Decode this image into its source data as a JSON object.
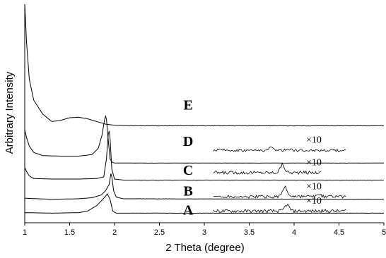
{
  "chart_data": {
    "type": "line",
    "xlabel": "2 Theta (degree)",
    "ylabel": "Arbitrary Intensity",
    "xlim": [
      1,
      5
    ],
    "x_ticks": [
      "1",
      "1.5",
      "2",
      "2.5",
      "3",
      "3.5",
      "4",
      "4.5",
      "5"
    ],
    "grid": false,
    "legend": "none",
    "series_labels": [
      "E",
      "D",
      "C",
      "B",
      "A"
    ],
    "magnification_label": "×10",
    "series": [
      {
        "label": "E",
        "baseline": 0.91,
        "points": [
          [
            1.0,
            2.05
          ],
          [
            1.02,
            1.7
          ],
          [
            1.05,
            1.35
          ],
          [
            1.1,
            1.15
          ],
          [
            1.2,
            1.02
          ],
          [
            1.3,
            0.95
          ],
          [
            1.4,
            0.96
          ],
          [
            1.5,
            0.985
          ],
          [
            1.6,
            0.99
          ],
          [
            1.7,
            0.975
          ],
          [
            1.8,
            0.95
          ],
          [
            1.9,
            0.925
          ],
          [
            2.0,
            0.915
          ],
          [
            2.2,
            0.91
          ],
          [
            5.0,
            0.91
          ]
        ]
      },
      {
        "label": "D",
        "baseline": 0.56,
        "points": [
          [
            1.0,
            0.87
          ],
          [
            1.02,
            0.8
          ],
          [
            1.05,
            0.72
          ],
          [
            1.1,
            0.66
          ],
          [
            1.2,
            0.63
          ],
          [
            1.4,
            0.625
          ],
          [
            1.6,
            0.625
          ],
          [
            1.75,
            0.64
          ],
          [
            1.82,
            0.7
          ],
          [
            1.86,
            0.82
          ],
          [
            1.89,
            0.97
          ],
          [
            1.9,
            1.0
          ],
          [
            1.91,
            0.97
          ],
          [
            1.93,
            0.78
          ],
          [
            1.95,
            0.6
          ],
          [
            1.97,
            0.57
          ],
          [
            2.0,
            0.56
          ],
          [
            5.0,
            0.56
          ]
        ]
      },
      {
        "label": "C",
        "baseline": 0.4,
        "points": [
          [
            1.0,
            0.52
          ],
          [
            1.02,
            0.48
          ],
          [
            1.05,
            0.44
          ],
          [
            1.1,
            0.415
          ],
          [
            1.3,
            0.41
          ],
          [
            1.6,
            0.41
          ],
          [
            1.8,
            0.415
          ],
          [
            1.88,
            0.43
          ],
          [
            1.91,
            0.6
          ],
          [
            1.93,
            0.83
          ],
          [
            1.94,
            0.86
          ],
          [
            1.95,
            0.8
          ],
          [
            1.97,
            0.5
          ],
          [
            2.0,
            0.41
          ],
          [
            2.1,
            0.4
          ],
          [
            5.0,
            0.4
          ]
        ]
      },
      {
        "label": "B",
        "baseline": 0.22,
        "points": [
          [
            1.0,
            0.23
          ],
          [
            1.3,
            0.22
          ],
          [
            1.6,
            0.225
          ],
          [
            1.75,
            0.235
          ],
          [
            1.85,
            0.26
          ],
          [
            1.9,
            0.3
          ],
          [
            1.94,
            0.36
          ],
          [
            1.96,
            0.46
          ],
          [
            1.97,
            0.43
          ],
          [
            1.99,
            0.3
          ],
          [
            2.02,
            0.24
          ],
          [
            2.1,
            0.225
          ],
          [
            5.0,
            0.22
          ]
        ]
      },
      {
        "label": "A",
        "baseline": 0.09,
        "points": [
          [
            1.0,
            0.095
          ],
          [
            1.3,
            0.09
          ],
          [
            1.6,
            0.095
          ],
          [
            1.7,
            0.11
          ],
          [
            1.8,
            0.16
          ],
          [
            1.87,
            0.22
          ],
          [
            1.92,
            0.27
          ],
          [
            1.95,
            0.22
          ],
          [
            1.98,
            0.11
          ],
          [
            2.02,
            0.09
          ],
          [
            5.0,
            0.09
          ]
        ]
      }
    ],
    "magnified_segments": [
      {
        "label": "D",
        "x_start": 3.1,
        "x_end": 4.58,
        "offset": 0.68,
        "amplitude": 0.025,
        "peaks": [
          [
            3.75,
            0.025
          ],
          [
            3.95,
            0.012
          ]
        ]
      },
      {
        "label": "C",
        "x_start": 3.1,
        "x_end": 4.3,
        "offset": 0.47,
        "amplitude": 0.03,
        "peaks": [
          [
            3.87,
            0.075
          ]
        ]
      },
      {
        "label": "B",
        "x_start": 3.1,
        "x_end": 4.58,
        "offset": 0.245,
        "amplitude": 0.03,
        "peaks": [
          [
            3.9,
            0.09
          ],
          [
            4.28,
            0.015
          ]
        ]
      },
      {
        "label": "A",
        "x_start": 3.1,
        "x_end": 4.58,
        "offset": 0.11,
        "amplitude": 0.03,
        "peaks": [
          [
            3.92,
            0.06
          ]
        ]
      }
    ]
  }
}
